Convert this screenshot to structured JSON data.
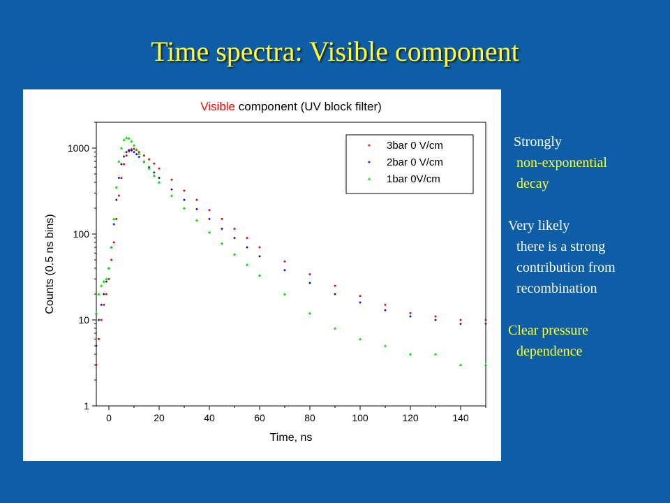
{
  "slide": {
    "title": "Time spectra: Visible component",
    "notes": {
      "n1_line1": "Strongly",
      "n1_line2": "non-exponential",
      "n1_line3": "decay",
      "n2_line1": "Very likely",
      "n2_line2": "there is a strong",
      "n2_line3": "contribution from",
      "n2_line4": "recombination",
      "n3_line1": "Clear pressure",
      "n3_line2": "dependence"
    },
    "colors": {
      "background": "#0d5ea6",
      "title": "#ffff33",
      "note_white": "#ffffff",
      "note_yellow": "#ffff33"
    }
  },
  "chart_data": {
    "type": "scatter",
    "title_prefix": "Visible",
    "title_suffix": " component (UV block filter)",
    "title_prefix_color": "#ff0000",
    "xlabel": "Time, ns",
    "ylabel": "Counts (0.5 ns bins)",
    "xlim": [
      -5,
      150
    ],
    "ylim": [
      1,
      2000
    ],
    "yscale": "log",
    "x_ticks": [
      "0",
      "20",
      "40",
      "60",
      "80",
      "100",
      "120",
      "140"
    ],
    "y_ticks": [
      "1",
      "10",
      "100",
      "1000"
    ],
    "legend_position": "top-right",
    "grid": false,
    "series": [
      {
        "name": "3bar 0 V/cm",
        "color": "#dd0000",
        "marker": "square",
        "x": [
          -5,
          -4,
          -3,
          -2,
          -1,
          0,
          1,
          2,
          3,
          4,
          5,
          6,
          7,
          8,
          9,
          10,
          11,
          12,
          14,
          16,
          18,
          20,
          25,
          30,
          35,
          40,
          45,
          50,
          55,
          60,
          70,
          80,
          90,
          100,
          110,
          120,
          130,
          140,
          150
        ],
        "values": [
          3,
          6,
          10,
          15,
          20,
          30,
          50,
          80,
          150,
          280,
          450,
          650,
          820,
          920,
          970,
          980,
          950,
          900,
          820,
          740,
          660,
          580,
          430,
          320,
          250,
          190,
          150,
          115,
          90,
          70,
          48,
          34,
          25,
          19,
          15,
          12,
          11,
          10,
          10
        ]
      },
      {
        "name": "2bar 0 V/cm",
        "color": "#0000cc",
        "marker": "diamond",
        "x": [
          -5,
          -4,
          -3,
          -2,
          -1,
          0,
          1,
          2,
          3,
          4,
          5,
          6,
          7,
          8,
          9,
          10,
          11,
          12,
          14,
          16,
          18,
          20,
          25,
          30,
          35,
          40,
          45,
          50,
          55,
          60,
          70,
          80,
          90,
          100,
          110,
          120,
          130,
          140,
          150
        ],
        "values": [
          5,
          10,
          15,
          20,
          28,
          40,
          70,
          130,
          250,
          450,
          650,
          800,
          900,
          950,
          940,
          900,
          850,
          790,
          690,
          600,
          520,
          450,
          330,
          250,
          195,
          150,
          115,
          90,
          70,
          55,
          38,
          27,
          20,
          16,
          13,
          11,
          10,
          9,
          9
        ]
      },
      {
        "name": "1bar 0V/cm",
        "color": "#00dd00",
        "marker": "triangle",
        "x": [
          -5,
          -4,
          -3,
          -2,
          -1,
          0,
          1,
          2,
          3,
          4,
          5,
          6,
          7,
          8,
          9,
          10,
          11,
          12,
          14,
          16,
          18,
          20,
          25,
          30,
          35,
          40,
          45,
          50,
          55,
          60,
          70,
          80,
          90,
          100,
          110,
          120,
          130,
          140,
          150
        ],
        "values": [
          12,
          20,
          25,
          28,
          30,
          40,
          70,
          150,
          350,
          700,
          1000,
          1250,
          1320,
          1300,
          1200,
          1080,
          960,
          860,
          700,
          580,
          480,
          400,
          280,
          200,
          145,
          105,
          78,
          58,
          44,
          33,
          20,
          12,
          8,
          6,
          5,
          4,
          4,
          3,
          3
        ]
      }
    ]
  }
}
